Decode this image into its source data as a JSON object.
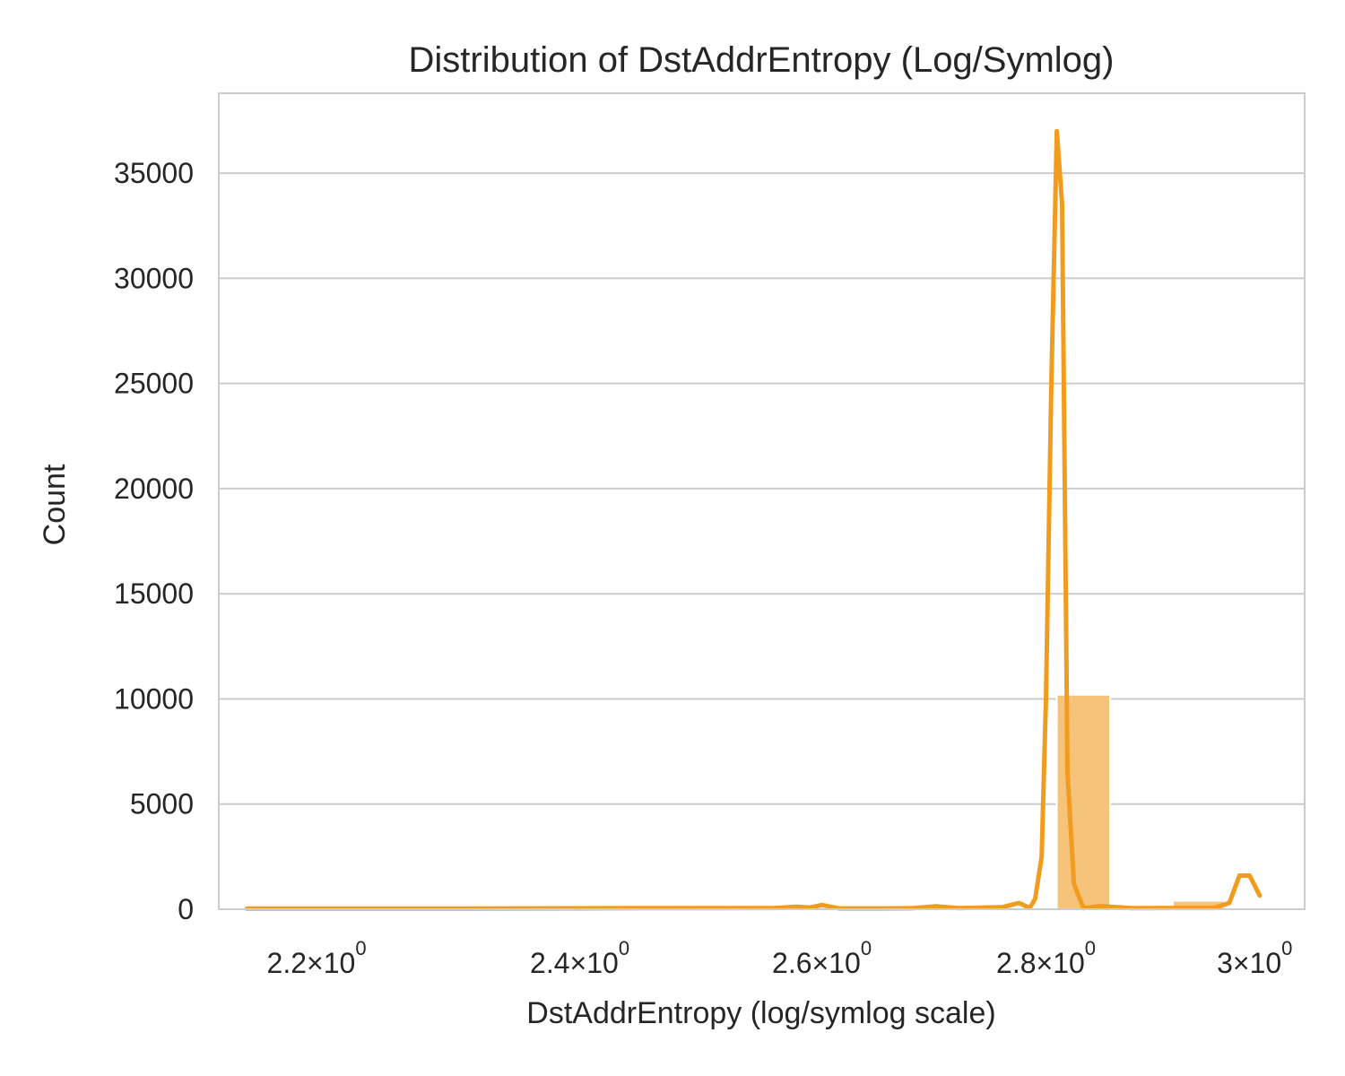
{
  "chart_data": {
    "type": "bar",
    "title": "Distribution of DstAddrEntropy (Log/Symlog)",
    "xlabel": "DstAddrEntropy (log/symlog scale)",
    "ylabel": "Count",
    "x_scale": "log",
    "xlim": [
      2.13,
      3.05
    ],
    "ylim": [
      0,
      38800
    ],
    "grid": "horizontal",
    "legend": "none",
    "colors": {
      "bar": "#f5c37a",
      "kde": "#f29c1f"
    },
    "x_ticks": [
      {
        "value": 2.2,
        "label": "2.2",
        "times": "×",
        "base": "10",
        "exp": "0"
      },
      {
        "value": 2.4,
        "label": "2.4",
        "times": "×",
        "base": "10",
        "exp": "0"
      },
      {
        "value": 2.6,
        "label": "2.6",
        "times": "×",
        "base": "10",
        "exp": "0"
      },
      {
        "value": 2.8,
        "label": "2.8",
        "times": "×",
        "base": "10",
        "exp": "0"
      },
      {
        "value": 3.0,
        "label": "3",
        "times": "×",
        "base": "10",
        "exp": "0"
      }
    ],
    "y_ticks": [
      {
        "value": 0,
        "label": "0"
      },
      {
        "value": 5000,
        "label": "5000"
      },
      {
        "value": 10000,
        "label": "10000"
      },
      {
        "value": 15000,
        "label": "15000"
      },
      {
        "value": 20000,
        "label": "20000"
      },
      {
        "value": 25000,
        "label": "25000"
      },
      {
        "value": 30000,
        "label": "30000"
      },
      {
        "value": 35000,
        "label": "35000"
      }
    ],
    "histogram": [
      {
        "x0": 2.15,
        "x1": 2.81,
        "count": 60
      },
      {
        "x0": 2.81,
        "x1": 2.86,
        "count": 10200
      },
      {
        "x0": 2.86,
        "x1": 2.92,
        "count": 80
      },
      {
        "x0": 2.92,
        "x1": 2.97,
        "count": 400
      }
    ],
    "kde": {
      "x": [
        2.15,
        2.3,
        2.45,
        2.56,
        2.578,
        2.59,
        2.6,
        2.615,
        2.65,
        2.68,
        2.7,
        2.72,
        2.76,
        2.775,
        2.785,
        2.79,
        2.796,
        2.8,
        2.805,
        2.81,
        2.815,
        2.82,
        2.826,
        2.835,
        2.85,
        2.88,
        2.92,
        2.96,
        2.975,
        2.985,
        2.995,
        3.005
      ],
      "y": [
        30,
        35,
        50,
        60,
        120,
        80,
        200,
        40,
        40,
        50,
        140,
        50,
        100,
        300,
        60,
        500,
        2500,
        10000,
        25000,
        37000,
        33500,
        6500,
        1200,
        50,
        150,
        50,
        60,
        60,
        300,
        1600,
        1600,
        650
      ]
    }
  }
}
